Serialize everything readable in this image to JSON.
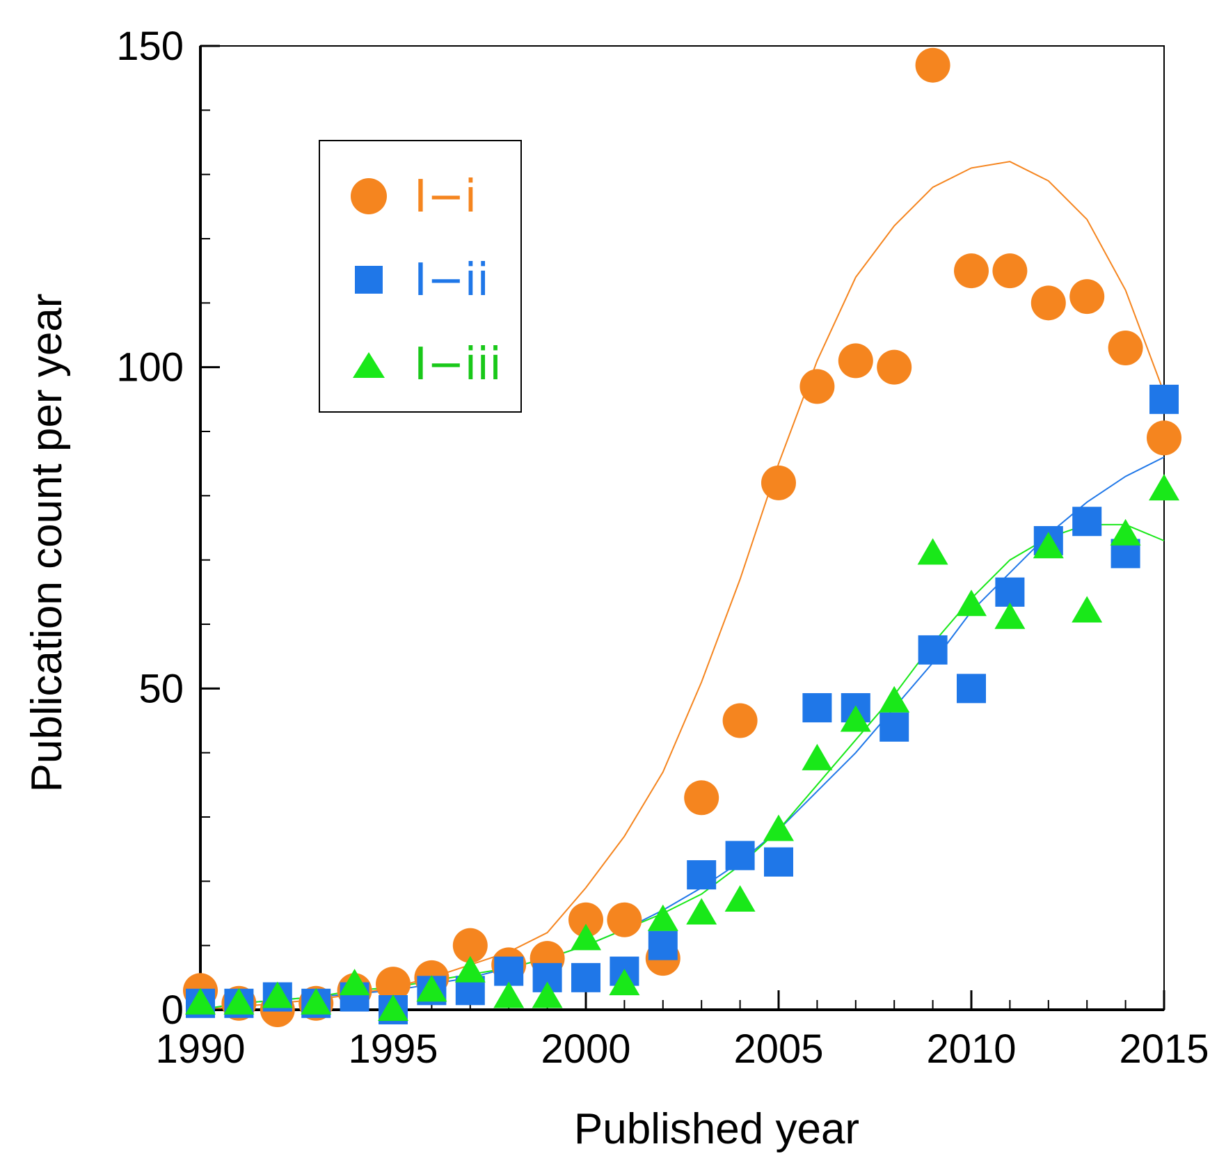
{
  "chart_data": {
    "type": "scatter",
    "title": "",
    "xlabel": "Published year",
    "ylabel": "Publication count per year",
    "xlim": [
      1990,
      2015
    ],
    "ylim": [
      0,
      150
    ],
    "xticks": [
      "1990",
      "1995",
      "2000",
      "2005",
      "2010",
      "2015"
    ],
    "yticks": [
      "0",
      "50",
      "100",
      "150"
    ],
    "grid": false,
    "legend_position": "top-left",
    "x": [
      1990,
      1991,
      1992,
      1993,
      1994,
      1995,
      1996,
      1997,
      1998,
      1999,
      2000,
      2001,
      2002,
      2003,
      2004,
      2005,
      2006,
      2007,
      2008,
      2009,
      2010,
      2011,
      2012,
      2013,
      2014,
      2015
    ],
    "series": [
      {
        "name": "I−i",
        "marker": "circle",
        "color": "#f5851f",
        "values": [
          3,
          1,
          0,
          1,
          3,
          4,
          5,
          10,
          7,
          8,
          14,
          14,
          8,
          33,
          45,
          82,
          97,
          101,
          100,
          147,
          115,
          115,
          110,
          111,
          103,
          89
        ],
        "fit": [
          0,
          0.5,
          1,
          1.6,
          2.4,
          3.5,
          5,
          7,
          9,
          12,
          19,
          27,
          37,
          51,
          67,
          85,
          101,
          114,
          122,
          128,
          131,
          132,
          129,
          123,
          112,
          96
        ]
      },
      {
        "name": "I−ii",
        "marker": "square",
        "color": "#1f77e8",
        "values": [
          1,
          1,
          2,
          1,
          2,
          0,
          3,
          3,
          6,
          5,
          5,
          6,
          10,
          21,
          24,
          23,
          47,
          47,
          44,
          56,
          50,
          65,
          73,
          76,
          71,
          95
        ],
        "fit": [
          0,
          1,
          1.5,
          2,
          2.5,
          3,
          4,
          5,
          6.5,
          8,
          10,
          12.5,
          15.5,
          19,
          23,
          28,
          34,
          40,
          47,
          54,
          62,
          68,
          74,
          79,
          83,
          86
        ]
      },
      {
        "name": "I−iii",
        "marker": "triangle",
        "color": "#19e819",
        "values": [
          1,
          1,
          2,
          1,
          4,
          0,
          3,
          6,
          2,
          2,
          11,
          4,
          14,
          15,
          17,
          28,
          39,
          45,
          48,
          71,
          63,
          61,
          72,
          62,
          74,
          81
        ],
        "fit": [
          0,
          1,
          1.5,
          2,
          3,
          3.5,
          4.5,
          5.5,
          6.5,
          8,
          10,
          12.5,
          15,
          18,
          22.5,
          28,
          35,
          42,
          49,
          57,
          64,
          70,
          73.5,
          75.5,
          75.5,
          73
        ]
      }
    ]
  }
}
